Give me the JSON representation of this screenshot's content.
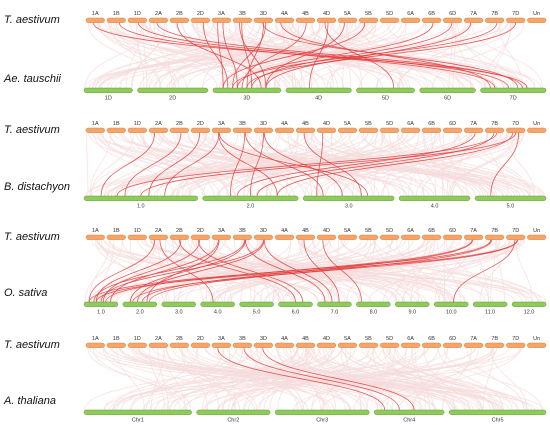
{
  "colors": {
    "top_bar": "#f5a46a",
    "top_bar_stroke": "#d9823f",
    "bottom_bar": "#8fcb5a",
    "bottom_bar_stroke": "#5f9a30",
    "background_links": "#f6dcdc",
    "highlight_links": "#e23b3b"
  },
  "panels": [
    {
      "top_species": "T. aestivum",
      "bottom_species": "Ae. tauschii",
      "top_chromosomes": [
        "1A",
        "1B",
        "1D",
        "2A",
        "2B",
        "2D",
        "3A",
        "3B",
        "3D",
        "4A",
        "4B",
        "4D",
        "5A",
        "5B",
        "5D",
        "6A",
        "6B",
        "6D",
        "7A",
        "7B",
        "7D",
        "Un"
      ],
      "bottom_chromosomes": [
        "1D",
        "2D",
        "3D",
        "4D",
        "5D",
        "6D",
        "7D"
      ],
      "highlight_links": [
        [
          6,
          2
        ],
        [
          6,
          2
        ],
        [
          7,
          2
        ],
        [
          7,
          2
        ],
        [
          8,
          2
        ],
        [
          8,
          2
        ],
        [
          4,
          2
        ],
        [
          5,
          2
        ],
        [
          10,
          2
        ],
        [
          11,
          4
        ],
        [
          13,
          2
        ],
        [
          16,
          2
        ],
        [
          17,
          2
        ],
        [
          18,
          2
        ],
        [
          19,
          2
        ],
        [
          20,
          2
        ],
        [
          0,
          6
        ],
        [
          1,
          6
        ],
        [
          2,
          6
        ],
        [
          3,
          6
        ],
        [
          9,
          6
        ],
        [
          11,
          3
        ],
        [
          8,
          6
        ],
        [
          12,
          2
        ]
      ]
    },
    {
      "top_species": "T. aestivum",
      "bottom_species": "B. distachyon",
      "top_chromosomes": [
        "1A",
        "1B",
        "1D",
        "2A",
        "2B",
        "2D",
        "3A",
        "3B",
        "3D",
        "4A",
        "4B",
        "4D",
        "5A",
        "5B",
        "5D",
        "6A",
        "6B",
        "6D",
        "7A",
        "7B",
        "7D",
        "Un"
      ],
      "bottom_chromosomes": [
        "1.0",
        "2.0",
        "3.0",
        "4.0",
        "5.0"
      ],
      "highlight_links": [
        [
          3,
          0
        ],
        [
          4,
          0
        ],
        [
          5,
          0
        ],
        [
          6,
          1
        ],
        [
          7,
          1
        ],
        [
          8,
          1
        ],
        [
          6,
          2
        ],
        [
          7,
          2
        ],
        [
          8,
          2
        ],
        [
          10,
          2
        ],
        [
          11,
          2
        ],
        [
          18,
          1
        ],
        [
          19,
          1
        ],
        [
          20,
          1
        ],
        [
          19,
          0
        ],
        [
          20,
          0
        ],
        [
          6,
          0
        ],
        [
          20,
          4
        ]
      ]
    },
    {
      "top_species": "T. aestivum",
      "bottom_species": "O. sativa",
      "top_chromosomes": [
        "1A",
        "1B",
        "1D",
        "2A",
        "2B",
        "2D",
        "3A",
        "3B",
        "3D",
        "4A",
        "4B",
        "4D",
        "5A",
        "5B",
        "5D",
        "6A",
        "6B",
        "6D",
        "7A",
        "7B",
        "7D",
        "Un"
      ],
      "bottom_chromosomes": [
        "1.0",
        "2.0",
        "3.0",
        "4.0",
        "5.0",
        "6.0",
        "7.0",
        "8.0",
        "9.0",
        "10.0",
        "11.0",
        "12.0"
      ],
      "highlight_links": [
        [
          3,
          0
        ],
        [
          4,
          0
        ],
        [
          5,
          0
        ],
        [
          6,
          0
        ],
        [
          7,
          0
        ],
        [
          8,
          0
        ],
        [
          6,
          1
        ],
        [
          7,
          1
        ],
        [
          8,
          1
        ],
        [
          18,
          0
        ],
        [
          19,
          0
        ],
        [
          20,
          0
        ],
        [
          18,
          1
        ],
        [
          19,
          1
        ],
        [
          20,
          1
        ],
        [
          4,
          5
        ],
        [
          5,
          5
        ],
        [
          7,
          6
        ],
        [
          8,
          6
        ],
        [
          10,
          6
        ],
        [
          11,
          7
        ],
        [
          3,
          3
        ],
        [
          20,
          9
        ]
      ]
    },
    {
      "top_species": "T. aestivum",
      "bottom_species": "A. thaliana",
      "top_chromosomes": [
        "1A",
        "1B",
        "1D",
        "2A",
        "2B",
        "2D",
        "3A",
        "3B",
        "3D",
        "4A",
        "4B",
        "4D",
        "5A",
        "5B",
        "5D",
        "6A",
        "6B",
        "6D",
        "7A",
        "7B",
        "7D",
        "Un"
      ],
      "bottom_chromosomes": [
        "Chr1",
        "Chr2",
        "Chr3",
        "Chr4",
        "Chr5"
      ],
      "highlight_links": [
        [
          6,
          3
        ],
        [
          7,
          3
        ],
        [
          8,
          3
        ]
      ]
    }
  ]
}
